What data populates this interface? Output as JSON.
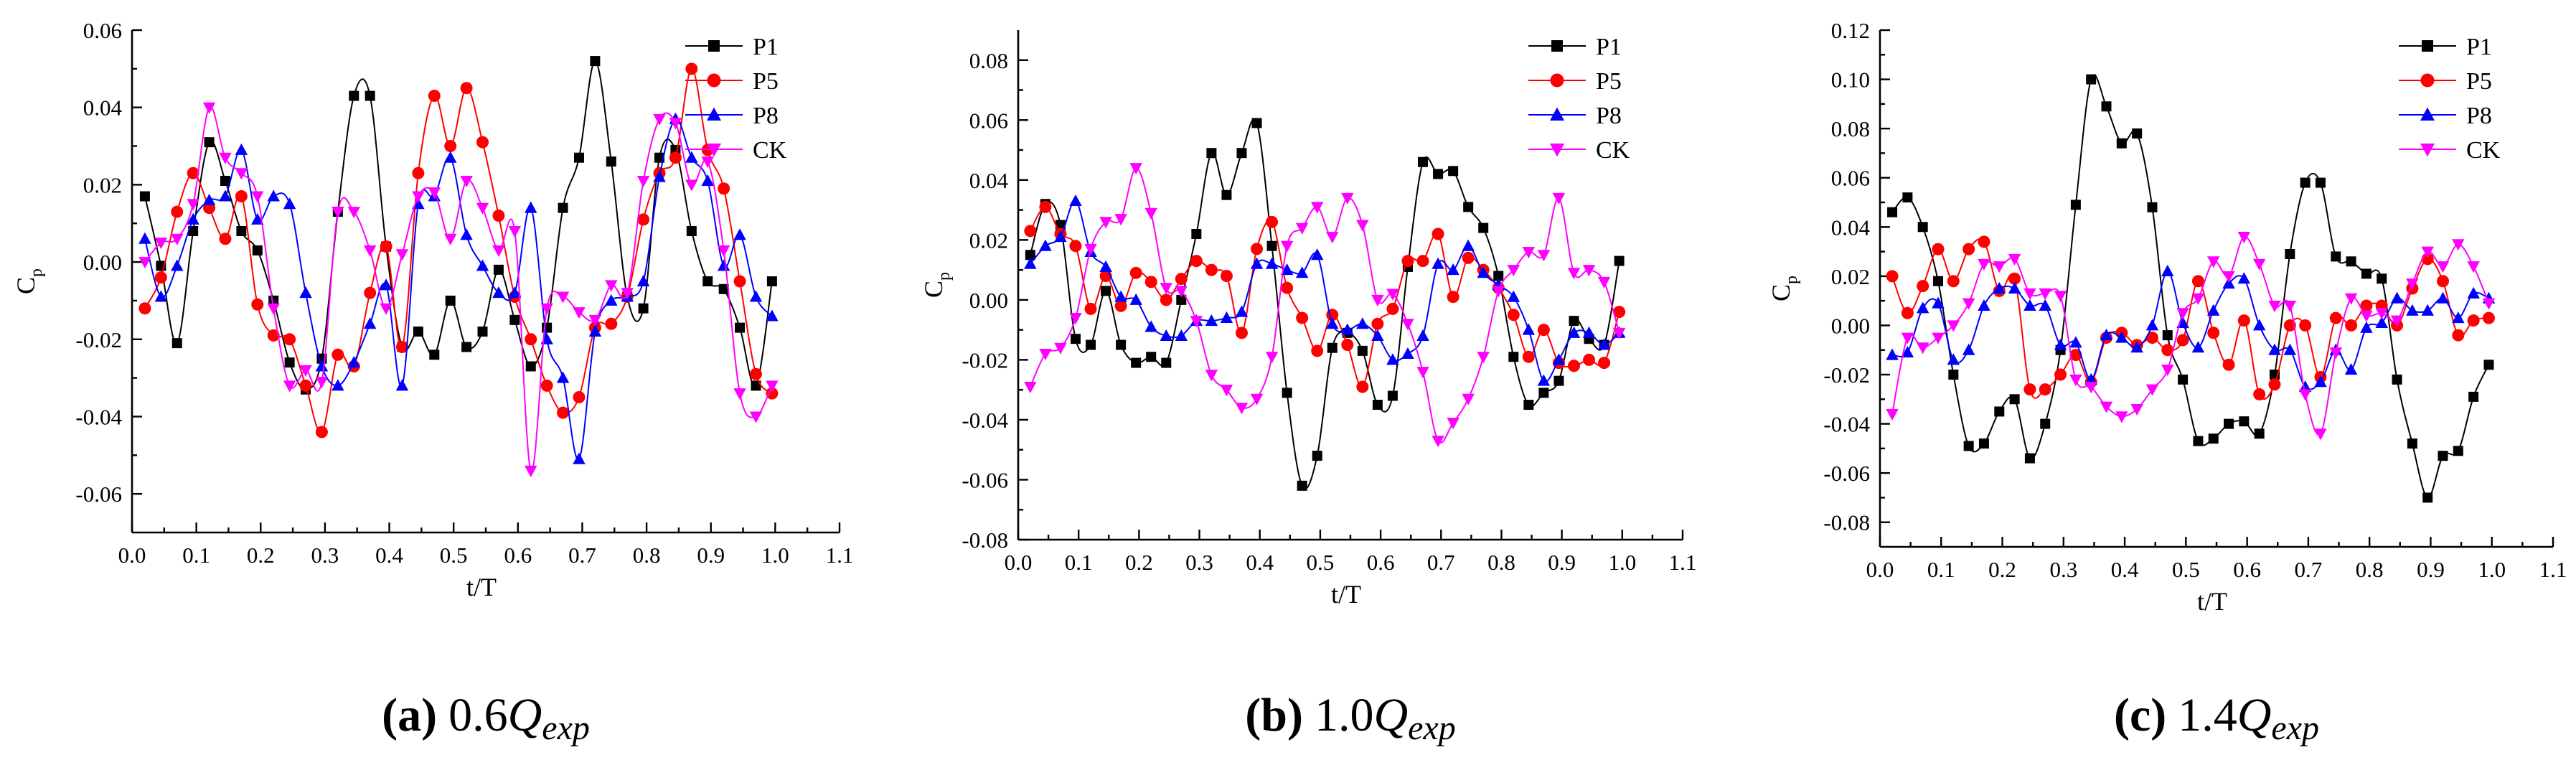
{
  "chart_data": [
    {
      "type": "line",
      "caption": {
        "letter": "(a)",
        "factor": "0.6",
        "q": "Q",
        "sub": "exp"
      },
      "xlabel": "t/T",
      "ylabel": "C",
      "ylabel_sub": "p",
      "xlim": [
        0.0,
        1.1
      ],
      "ylim": [
        -0.07,
        0.06
      ],
      "xticks": [
        0.0,
        0.1,
        0.2,
        0.3,
        0.4,
        0.5,
        0.6,
        0.7,
        0.8,
        0.9,
        1.0,
        1.1
      ],
      "xtick_labels": [
        "0.0",
        "0.1",
        "0.2",
        "0.3",
        "0.4",
        "0.5",
        "0.6",
        "0.7",
        "0.8",
        "0.9",
        "1.0",
        "1.1"
      ],
      "yticks": [
        -0.06,
        -0.04,
        -0.02,
        0.0,
        0.02,
        0.04,
        0.06
      ],
      "ytick_labels": [
        "-0.06",
        "-0.04",
        "-0.02",
        "0.00",
        "0.02",
        "0.04",
        "0.06"
      ],
      "legend_position": "top-right",
      "x": [
        0.02,
        0.045,
        0.07,
        0.095,
        0.12,
        0.145,
        0.17,
        0.195,
        0.22,
        0.245,
        0.27,
        0.295,
        0.32,
        0.345,
        0.37,
        0.395,
        0.42,
        0.445,
        0.47,
        0.495,
        0.52,
        0.545,
        0.57,
        0.595,
        0.62,
        0.645,
        0.67,
        0.695,
        0.72,
        0.745,
        0.77,
        0.795,
        0.82,
        0.845,
        0.87,
        0.895,
        0.92,
        0.945,
        0.97,
        0.995
      ],
      "series": [
        {
          "name": "P1",
          "color": "#000000",
          "marker": "square",
          "values": [
            0.017,
            -0.001,
            -0.021,
            0.008,
            0.031,
            0.021,
            0.008,
            0.003,
            -0.01,
            -0.026,
            -0.033,
            -0.025,
            0.013,
            0.043,
            0.043,
            0.004,
            -0.022,
            -0.018,
            -0.024,
            -0.01,
            -0.022,
            -0.018,
            -0.002,
            -0.015,
            -0.027,
            -0.017,
            0.014,
            0.027,
            0.052,
            0.026,
            -0.009,
            -0.012,
            0.027,
            0.029,
            0.008,
            -0.005,
            -0.007,
            -0.017,
            -0.032,
            -0.005
          ]
        },
        {
          "name": "P5",
          "color": "#ff0000",
          "marker": "circle",
          "values": [
            -0.012,
            -0.004,
            0.013,
            0.023,
            0.014,
            0.006,
            0.017,
            -0.011,
            -0.019,
            -0.02,
            -0.032,
            -0.044,
            -0.024,
            -0.027,
            -0.008,
            0.004,
            -0.022,
            0.023,
            0.043,
            0.03,
            0.045,
            0.031,
            0.012,
            -0.009,
            -0.02,
            -0.032,
            -0.039,
            -0.035,
            -0.017,
            -0.016,
            -0.009,
            0.011,
            0.023,
            0.027,
            0.05,
            0.029,
            0.019,
            -0.005,
            -0.029,
            -0.034
          ]
        },
        {
          "name": "P8",
          "color": "#0000ff",
          "marker": "triangle-up",
          "values": [
            0.006,
            -0.009,
            -0.001,
            0.011,
            0.016,
            0.017,
            0.029,
            0.011,
            0.017,
            0.015,
            -0.008,
            -0.027,
            -0.032,
            -0.026,
            -0.016,
            -0.006,
            -0.032,
            0.015,
            0.017,
            0.027,
            0.007,
            -0.001,
            -0.008,
            -0.008,
            0.014,
            -0.02,
            -0.03,
            -0.051,
            -0.018,
            -0.01,
            -0.009,
            -0.005,
            0.022,
            0.037,
            0.027,
            0.021,
            -0.001,
            0.007,
            -0.009,
            -0.014
          ]
        },
        {
          "name": "CK",
          "color": "#ff00ff",
          "marker": "triangle-down",
          "values": [
            0.0,
            0.005,
            0.006,
            0.015,
            0.04,
            0.027,
            0.023,
            0.017,
            -0.012,
            -0.032,
            -0.028,
            -0.031,
            0.013,
            0.013,
            0.003,
            -0.012,
            0.002,
            0.017,
            0.018,
            0.006,
            0.021,
            0.014,
            0.003,
            0.008,
            -0.054,
            -0.012,
            -0.009,
            -0.013,
            -0.015,
            -0.006,
            -0.008,
            0.021,
            0.037,
            0.036,
            0.02,
            0.026,
            0.003,
            -0.034,
            -0.04,
            -0.032
          ]
        }
      ]
    },
    {
      "type": "line",
      "caption": {
        "letter": "(b)",
        "factor": "1.0",
        "q": "Q",
        "sub": "exp"
      },
      "xlabel": "t/T",
      "ylabel": "C",
      "ylabel_sub": "p",
      "xlim": [
        0.0,
        1.1
      ],
      "ylim": [
        -0.08,
        0.09
      ],
      "xticks": [
        0.0,
        0.1,
        0.2,
        0.3,
        0.4,
        0.5,
        0.6,
        0.7,
        0.8,
        0.9,
        1.0,
        1.1
      ],
      "xtick_labels": [
        "0.0",
        "0.1",
        "0.2",
        "0.3",
        "0.4",
        "0.5",
        "0.6",
        "0.7",
        "0.8",
        "0.9",
        "1.0",
        "1.1"
      ],
      "yticks": [
        -0.08,
        -0.06,
        -0.04,
        -0.02,
        0.0,
        0.02,
        0.04,
        0.06,
        0.08
      ],
      "ytick_labels": [
        "-0.08",
        "-0.06",
        "-0.04",
        "-0.02",
        "0.00",
        "0.02",
        "0.04",
        "0.06",
        "0.08"
      ],
      "legend_position": "top-right",
      "x": [
        0.02,
        0.045,
        0.07,
        0.095,
        0.12,
        0.145,
        0.17,
        0.195,
        0.22,
        0.245,
        0.27,
        0.295,
        0.32,
        0.345,
        0.37,
        0.395,
        0.42,
        0.445,
        0.47,
        0.495,
        0.52,
        0.545,
        0.57,
        0.595,
        0.62,
        0.645,
        0.67,
        0.695,
        0.72,
        0.745,
        0.77,
        0.795,
        0.82,
        0.845,
        0.87,
        0.895,
        0.92,
        0.945,
        0.97,
        0.995
      ],
      "series": [
        {
          "name": "P1",
          "color": "#000000",
          "marker": "square",
          "values": [
            0.015,
            0.032,
            0.025,
            -0.013,
            -0.015,
            0.003,
            -0.015,
            -0.021,
            -0.019,
            -0.021,
            0.0,
            0.022,
            0.049,
            0.035,
            0.049,
            0.059,
            0.018,
            -0.031,
            -0.062,
            -0.052,
            -0.016,
            -0.011,
            -0.017,
            -0.035,
            -0.032,
            0.011,
            0.046,
            0.042,
            0.043,
            0.031,
            0.024,
            0.008,
            -0.019,
            -0.035,
            -0.031,
            -0.027,
            -0.007,
            -0.013,
            -0.015,
            0.013
          ]
        },
        {
          "name": "P5",
          "color": "#ff0000",
          "marker": "circle",
          "values": [
            0.023,
            0.031,
            0.022,
            0.018,
            -0.003,
            0.008,
            -0.002,
            0.009,
            0.006,
            0.0,
            0.007,
            0.013,
            0.01,
            0.008,
            -0.011,
            0.017,
            0.026,
            0.004,
            -0.006,
            -0.017,
            -0.005,
            -0.015,
            -0.029,
            -0.008,
            -0.003,
            0.013,
            0.013,
            0.022,
            0.001,
            0.014,
            0.01,
            0.004,
            -0.005,
            -0.019,
            -0.01,
            -0.021,
            -0.022,
            -0.02,
            -0.021,
            -0.004
          ]
        },
        {
          "name": "P8",
          "color": "#0000ff",
          "marker": "triangle-up",
          "values": [
            0.012,
            0.018,
            0.021,
            0.033,
            0.016,
            0.011,
            0.001,
            0.0,
            -0.009,
            -0.012,
            -0.012,
            -0.007,
            -0.007,
            -0.006,
            -0.004,
            0.012,
            0.012,
            0.01,
            0.009,
            0.015,
            -0.008,
            -0.01,
            -0.008,
            -0.012,
            -0.02,
            -0.018,
            -0.012,
            0.012,
            0.01,
            0.018,
            0.009,
            0.005,
            0.001,
            -0.01,
            -0.027,
            -0.02,
            -0.011,
            -0.011,
            -0.015,
            -0.011
          ]
        },
        {
          "name": "CK",
          "color": "#ff00ff",
          "marker": "triangle-down",
          "values": [
            -0.029,
            -0.018,
            -0.016,
            -0.006,
            0.017,
            0.026,
            0.027,
            0.044,
            0.029,
            0.004,
            0.003,
            -0.007,
            -0.025,
            -0.03,
            -0.036,
            -0.033,
            -0.019,
            0.018,
            0.024,
            0.031,
            0.021,
            0.034,
            0.025,
            0.0,
            0.002,
            -0.008,
            -0.024,
            -0.047,
            -0.041,
            -0.033,
            -0.019,
            0.003,
            0.01,
            0.016,
            0.015,
            0.034,
            0.009,
            0.01,
            0.006,
            -0.011
          ]
        }
      ]
    },
    {
      "type": "line",
      "caption": {
        "letter": "(c)",
        "factor": "1.4",
        "q": "Q",
        "sub": "exp"
      },
      "xlabel": "t/T",
      "ylabel": "C",
      "ylabel_sub": "p",
      "xlim": [
        0.0,
        1.1
      ],
      "ylim": [
        -0.09,
        0.12
      ],
      "xticks": [
        0.0,
        0.1,
        0.2,
        0.3,
        0.4,
        0.5,
        0.6,
        0.7,
        0.8,
        0.9,
        1.0,
        1.1
      ],
      "xtick_labels": [
        "0.0",
        "0.1",
        "0.2",
        "0.3",
        "0.4",
        "0.5",
        "0.6",
        "0.7",
        "0.8",
        "0.9",
        "1.0",
        "1.1"
      ],
      "yticks": [
        -0.08,
        -0.06,
        -0.04,
        -0.02,
        0.0,
        0.02,
        0.04,
        0.06,
        0.08,
        0.1,
        0.12
      ],
      "ytick_labels": [
        "-0.08",
        "-0.06",
        "-0.04",
        "-0.02",
        "0.00",
        "0.02",
        "0.04",
        "0.06",
        "0.08",
        "0.10",
        "0.12"
      ],
      "legend_position": "top-right",
      "x": [
        0.02,
        0.045,
        0.07,
        0.095,
        0.12,
        0.145,
        0.17,
        0.195,
        0.22,
        0.245,
        0.27,
        0.295,
        0.32,
        0.345,
        0.37,
        0.395,
        0.42,
        0.445,
        0.47,
        0.495,
        0.52,
        0.545,
        0.57,
        0.595,
        0.62,
        0.645,
        0.67,
        0.695,
        0.72,
        0.745,
        0.77,
        0.795,
        0.82,
        0.845,
        0.87,
        0.895,
        0.92,
        0.945,
        0.97,
        0.995
      ],
      "series": [
        {
          "name": "P1",
          "color": "#000000",
          "marker": "square",
          "values": [
            0.046,
            0.052,
            0.04,
            0.018,
            -0.02,
            -0.049,
            -0.048,
            -0.035,
            -0.03,
            -0.054,
            -0.04,
            -0.01,
            0.049,
            0.1,
            0.089,
            0.074,
            0.078,
            0.048,
            -0.004,
            -0.022,
            -0.047,
            -0.046,
            -0.04,
            -0.039,
            -0.044,
            -0.02,
            0.029,
            0.058,
            0.058,
            0.028,
            0.026,
            0.021,
            0.019,
            -0.022,
            -0.048,
            -0.07,
            -0.053,
            -0.051,
            -0.029,
            -0.016
          ]
        },
        {
          "name": "P5",
          "color": "#ff0000",
          "marker": "circle",
          "values": [
            0.02,
            0.005,
            0.016,
            0.031,
            0.018,
            0.031,
            0.034,
            0.014,
            0.019,
            -0.026,
            -0.026,
            -0.02,
            -0.012,
            -0.023,
            -0.005,
            -0.003,
            -0.008,
            -0.005,
            -0.01,
            -0.006,
            0.018,
            -0.003,
            -0.016,
            0.002,
            -0.028,
            -0.024,
            0.0,
            0.0,
            -0.021,
            0.003,
            0.0,
            0.008,
            0.008,
            0.0,
            0.015,
            0.027,
            0.018,
            -0.004,
            0.002,
            0.003
          ]
        },
        {
          "name": "P8",
          "color": "#0000ff",
          "marker": "triangle-up",
          "values": [
            -0.012,
            -0.011,
            0.007,
            0.009,
            -0.014,
            -0.01,
            0.008,
            0.015,
            0.015,
            0.008,
            0.008,
            -0.008,
            -0.007,
            -0.022,
            -0.004,
            -0.005,
            -0.009,
            0.0,
            0.022,
            0.001,
            -0.009,
            0.006,
            0.017,
            0.019,
            0.0,
            -0.01,
            -0.01,
            -0.025,
            -0.023,
            -0.01,
            -0.018,
            -0.001,
            0.001,
            0.011,
            0.006,
            0.006,
            0.011,
            0.003,
            0.013,
            0.011
          ]
        },
        {
          "name": "CK",
          "color": "#ff00ff",
          "marker": "triangle-down",
          "values": [
            -0.036,
            -0.005,
            -0.009,
            -0.005,
            0.0,
            0.009,
            0.025,
            0.024,
            0.027,
            0.013,
            0.013,
            0.012,
            -0.022,
            -0.025,
            -0.033,
            -0.037,
            -0.034,
            -0.026,
            -0.018,
            0.005,
            0.011,
            0.026,
            0.02,
            0.036,
            0.025,
            0.008,
            0.008,
            -0.028,
            -0.044,
            -0.011,
            0.011,
            0.004,
            0.005,
            0.002,
            0.017,
            0.03,
            0.024,
            0.033,
            0.024,
            0.009
          ]
        }
      ]
    }
  ]
}
